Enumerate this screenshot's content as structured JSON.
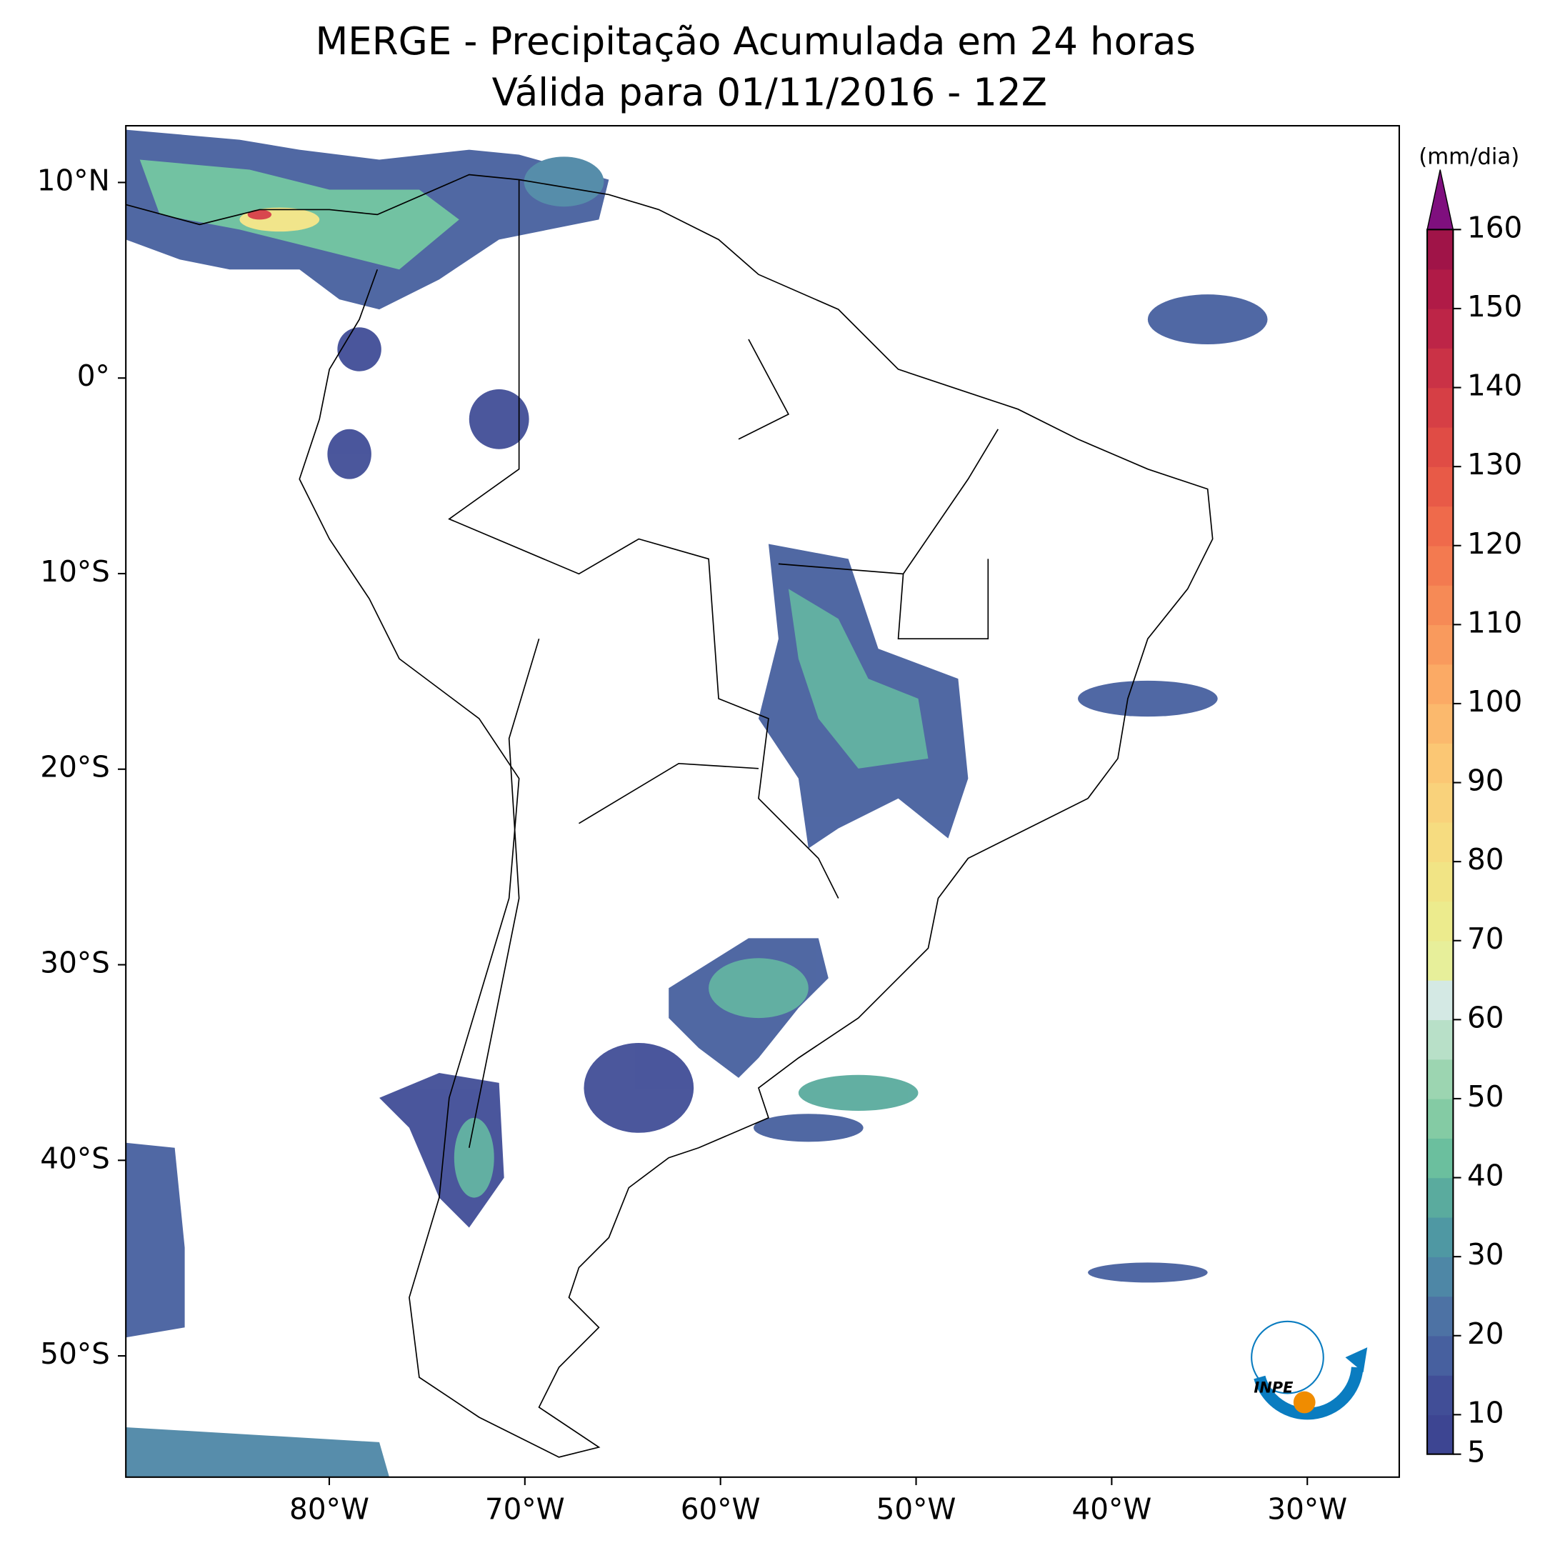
{
  "map": {
    "title": "MERGE - Precipitação Acumulada em 24 horas",
    "subtitle": "Válida para 01/11/2016 - 12Z",
    "xlim": [
      -90.4,
      -25.3
    ],
    "ylim": [
      -56.2,
      12.9
    ],
    "xticks": [
      {
        "value": -80,
        "label": "80°W"
      },
      {
        "value": -70,
        "label": "70°W"
      },
      {
        "value": -60,
        "label": "60°W"
      },
      {
        "value": -50,
        "label": "50°W"
      },
      {
        "value": -40,
        "label": "40°W"
      },
      {
        "value": -30,
        "label": "30°W"
      }
    ],
    "yticks": [
      {
        "value": 10,
        "label": "10°N"
      },
      {
        "value": 0,
        "label": "0°"
      },
      {
        "value": -10,
        "label": "10°S"
      },
      {
        "value": -20,
        "label": "20°S"
      },
      {
        "value": -30,
        "label": "30°S"
      },
      {
        "value": -40,
        "label": "40°S"
      },
      {
        "value": -50,
        "label": "50°S"
      }
    ],
    "colorbar": {
      "label": "(mm/dia)",
      "lim": [
        5,
        160
      ],
      "ticks": [
        5,
        10,
        20,
        30,
        40,
        50,
        60,
        70,
        80,
        90,
        100,
        110,
        120,
        130,
        140,
        150,
        160
      ],
      "colors": [
        "#3d4592",
        "#414e97",
        "#47609f",
        "#4d72a4",
        "#4e87a6",
        "#4f98a3",
        "#5aab9e",
        "#6bbf9e",
        "#84cba4",
        "#9cd5b1",
        "#b8e0c8",
        "#d4e9e4",
        "#e7ef9a",
        "#eceb8d",
        "#f1e485",
        "#f6dc80",
        "#f9d27b",
        "#fbc774",
        "#fbb96d",
        "#fbaa65",
        "#f99a5d",
        "#f68a56",
        "#f37a50",
        "#ef6a4b",
        "#e85a47",
        "#e04c45",
        "#d63f45",
        "#ca3246",
        "#bd2547",
        "#b01b47",
        "#a01448"
      ],
      "extend_color": "#7f0f7e"
    },
    "logo": "INPE"
  }
}
